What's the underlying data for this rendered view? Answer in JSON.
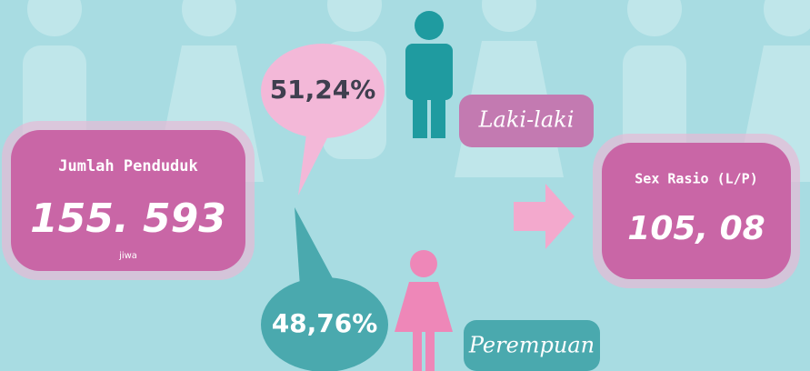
{
  "population": {
    "label": "Jumlah Penduduk",
    "value": "155. 593",
    "unit": "jiwa"
  },
  "male": {
    "percent": "51,24%",
    "label": "Laki-laki"
  },
  "female": {
    "percent": "48,76%",
    "label": "Perempuan"
  },
  "sex_ratio": {
    "label": "Sex Rasio (L/P)",
    "value": "105, 08"
  }
}
